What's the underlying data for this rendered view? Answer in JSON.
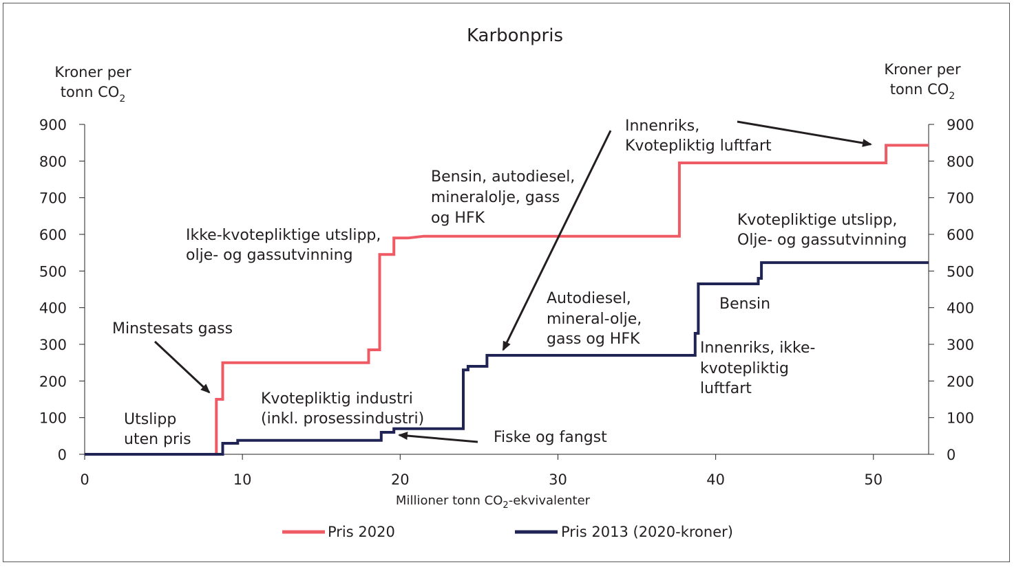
{
  "chart_data": {
    "type": "line",
    "title": "Karbonpris",
    "ylabel_left": [
      "Kroner per",
      "tonn CO",
      "2"
    ],
    "ylabel_right": [
      "Kroner per",
      "tonn CO",
      "2"
    ],
    "xlabel": {
      "pre": "Millioner tonn CO",
      "sub": "2",
      "post": "-ekvivalenter"
    },
    "xlim": [
      0,
      53.5
    ],
    "ylim": [
      0,
      900
    ],
    "xticks": [
      0,
      10,
      20,
      30,
      40,
      50
    ],
    "yticks": [
      0,
      100,
      200,
      300,
      400,
      500,
      600,
      700,
      800,
      900
    ],
    "grid": false,
    "legend_position": "bottom",
    "series": [
      {
        "name": "Pris 2020",
        "color": "#ef5b65",
        "step_points": [
          [
            0,
            0
          ],
          [
            8.35,
            0
          ],
          [
            8.35,
            150
          ],
          [
            8.75,
            150
          ],
          [
            8.75,
            250
          ],
          [
            18.0,
            250
          ],
          [
            18.0,
            285
          ],
          [
            18.7,
            285
          ],
          [
            18.7,
            545
          ],
          [
            19.6,
            545
          ],
          [
            19.6,
            590
          ],
          [
            20.5,
            590
          ],
          [
            21.5,
            595
          ],
          [
            37.7,
            595
          ],
          [
            37.7,
            795
          ],
          [
            50.8,
            795
          ],
          [
            50.8,
            843
          ],
          [
            53.5,
            843
          ]
        ]
      },
      {
        "name": "Pris 2013 (2020-kroner)",
        "color": "#1f2454",
        "step_points": [
          [
            0,
            0
          ],
          [
            8.75,
            0
          ],
          [
            8.75,
            30
          ],
          [
            9.7,
            30
          ],
          [
            9.7,
            38
          ],
          [
            18.8,
            38
          ],
          [
            18.8,
            60
          ],
          [
            19.6,
            60
          ],
          [
            19.6,
            70
          ],
          [
            24.0,
            70
          ],
          [
            24.0,
            230
          ],
          [
            24.3,
            230
          ],
          [
            24.3,
            240
          ],
          [
            25.5,
            240
          ],
          [
            25.5,
            270
          ],
          [
            38.7,
            270
          ],
          [
            38.7,
            330
          ],
          [
            38.9,
            330
          ],
          [
            38.9,
            465
          ],
          [
            42.7,
            465
          ],
          [
            42.7,
            480
          ],
          [
            42.9,
            480
          ],
          [
            42.9,
            523
          ],
          [
            53.5,
            523
          ]
        ]
      }
    ],
    "annotations": [
      {
        "id": "utslipp-uten-pris",
        "lines": [
          "Utslipp",
          "uten pris"
        ]
      },
      {
        "id": "minstesats-gass",
        "lines": [
          "Minstesats gass"
        ]
      },
      {
        "id": "ikke-kvotepliktige",
        "lines": [
          "Ikke-kvotepliktige utslipp,",
          "olje- og gassutvinning"
        ]
      },
      {
        "id": "bensin-autodiesel",
        "lines": [
          "Bensin, autodiesel,",
          "mineralolje, gass",
          "og HFK"
        ]
      },
      {
        "id": "innenriks-kvotepliktig",
        "lines": [
          "Innenriks,",
          "Kvotepliktig luftfart"
        ]
      },
      {
        "id": "kvotepliktige-utslipp",
        "lines": [
          "Kvotepliktige utslipp,",
          "Olje- og gassutvinning"
        ]
      },
      {
        "id": "kvotepliktig-industri",
        "lines": [
          "Kvotepliktig industri",
          "(inkl. prosessindustri)"
        ]
      },
      {
        "id": "fiske-og-fangst",
        "lines": [
          "Fiske og fangst"
        ]
      },
      {
        "id": "autodiesel-mineral",
        "lines": [
          "Autodiesel,",
          "mineral-olje,",
          "gass og HFK"
        ]
      },
      {
        "id": "bensin",
        "lines": [
          "Bensin"
        ]
      },
      {
        "id": "innenriks-ikke",
        "lines": [
          "Innenriks, ikke-",
          "kvotepliktig",
          "luftfart"
        ]
      }
    ]
  }
}
